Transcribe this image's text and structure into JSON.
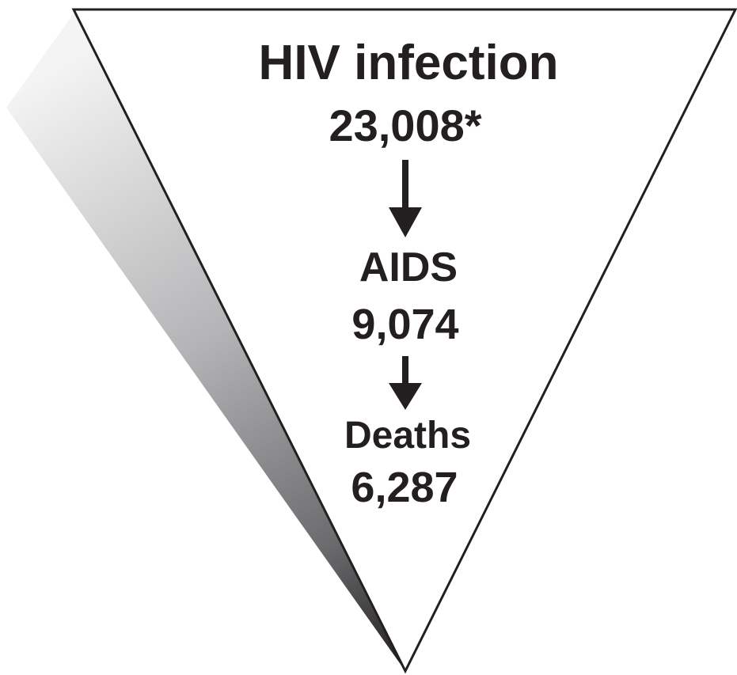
{
  "stages": [
    {
      "label": "HIV infection",
      "value": "23,008*"
    },
    {
      "label": "AIDS",
      "value": "9,074"
    },
    {
      "label": "Deaths",
      "value": "6,287"
    }
  ],
  "colors": {
    "text": "#231f20",
    "outline": "#231f20",
    "shadow_light": "#f2f2f3",
    "shadow_dark": "#231f20",
    "background": "#ffffff"
  }
}
